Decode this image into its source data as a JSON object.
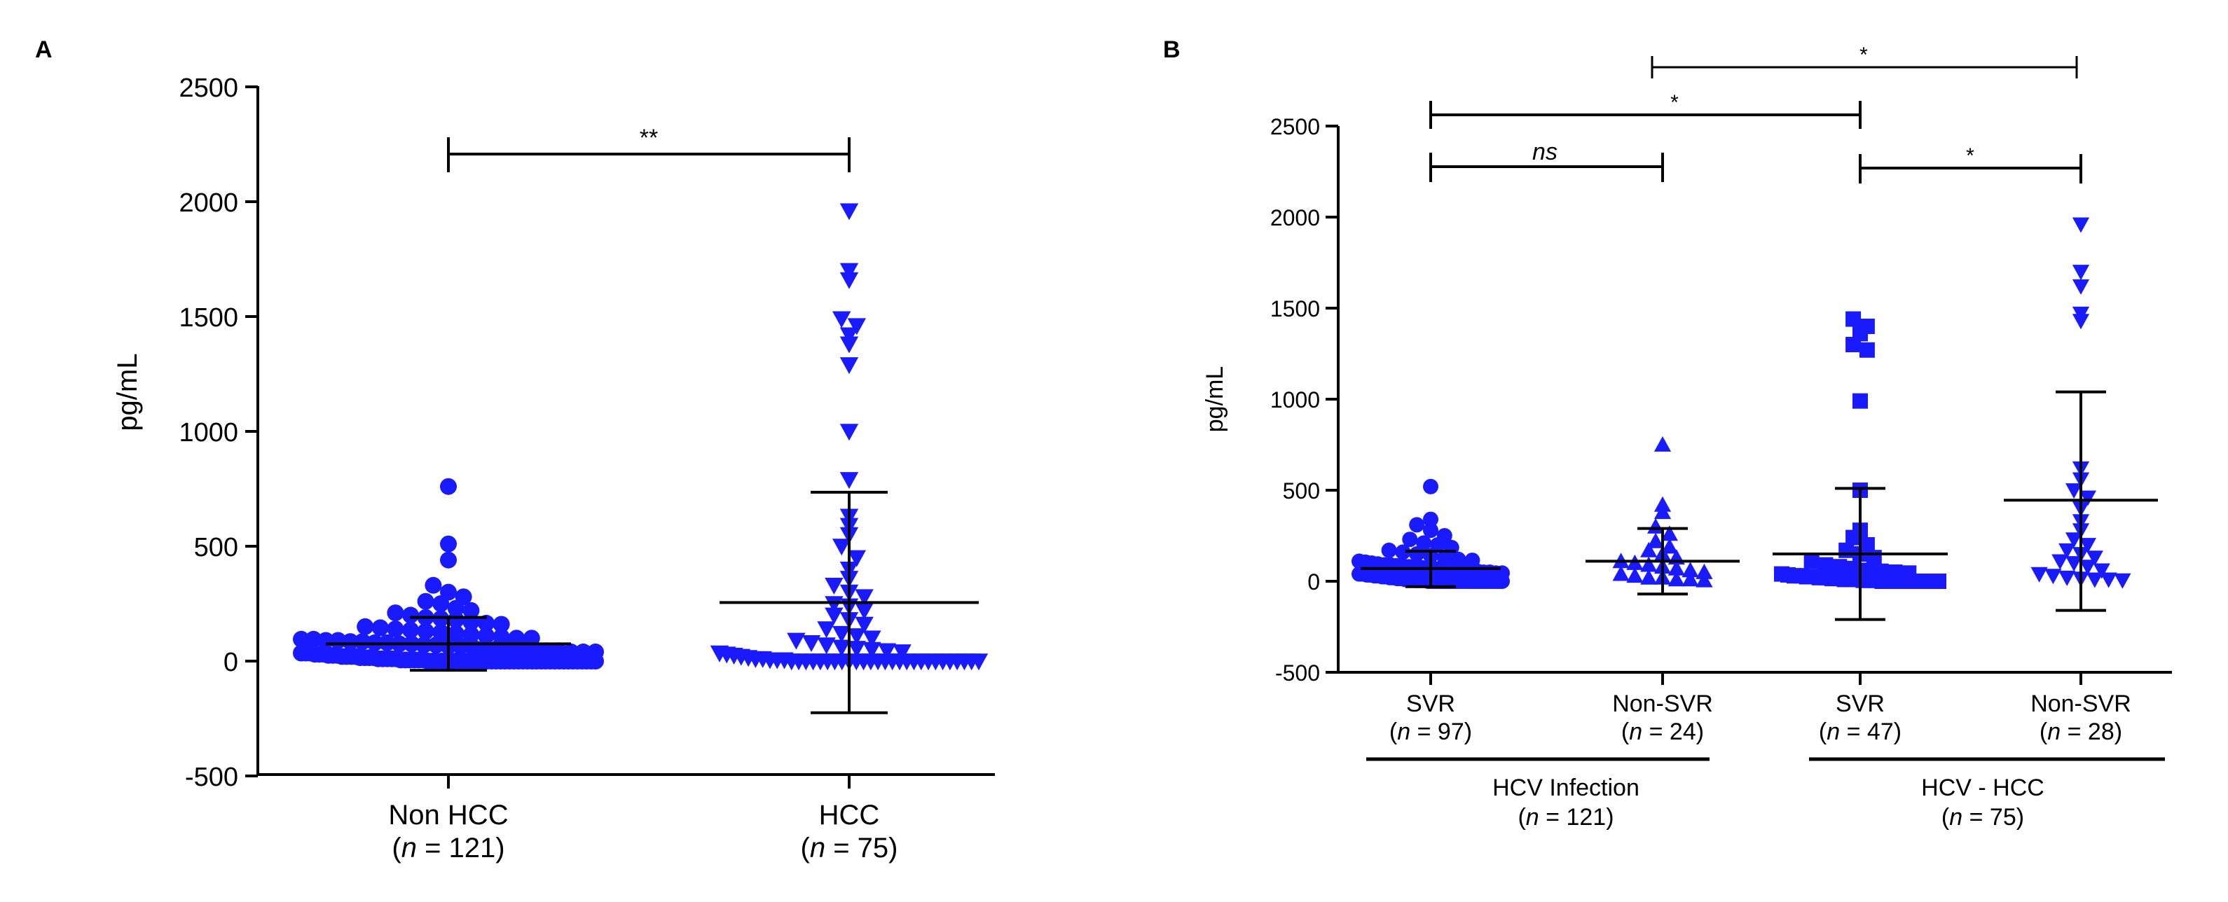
{
  "colors": {
    "marker": "#1a1aff",
    "axis": "#000000",
    "background": "#ffffff"
  },
  "chart_data": [
    {
      "type": "scatter",
      "panel_label": "A",
      "ylabel": "pg/mL",
      "ylim": [
        -500,
        2500
      ],
      "yticks": [
        -500,
        0,
        500,
        1000,
        1500,
        2000,
        2500
      ],
      "ytick_labels": [
        "-500",
        "0",
        "500",
        "1000",
        "1500",
        "2000",
        "2500"
      ],
      "groups": [
        {
          "name": "Non HCC",
          "n_prefix": "(",
          "n_italic": "n",
          "n_suffix": " = 121)",
          "marker": "circle",
          "mean": 75,
          "sd_low": -40,
          "sd_high": 190,
          "values": [
            760,
            510,
            440,
            330,
            300,
            280,
            260,
            250,
            230,
            220,
            210,
            200,
            190,
            185,
            180,
            170,
            165,
            160,
            150,
            145,
            140,
            135,
            130,
            125,
            120,
            115,
            110,
            105,
            100,
            100,
            95,
            95,
            90,
            90,
            85,
            85,
            80,
            80,
            75,
            75,
            70,
            70,
            65,
            65,
            60,
            60,
            55,
            55,
            50,
            50,
            45,
            45,
            40,
            40,
            40,
            35,
            35,
            35,
            30,
            30,
            30,
            25,
            25,
            25,
            20,
            20,
            20,
            20,
            15,
            15,
            15,
            15,
            10,
            10,
            10,
            10,
            10,
            5,
            5,
            5,
            5,
            5,
            5,
            0,
            0,
            0,
            0,
            0,
            0,
            0,
            0,
            0,
            0,
            0,
            0,
            0,
            0,
            0,
            0,
            0,
            0,
            0,
            0,
            0,
            0,
            0,
            0,
            0,
            0,
            0,
            0,
            0,
            0,
            0,
            0,
            0,
            0,
            0,
            0,
            0,
            0
          ]
        },
        {
          "name": "HCC",
          "n_prefix": "(",
          "n_italic": "n",
          "n_suffix": " = 75)",
          "marker": "triangle-down",
          "mean": 255,
          "sd_low": -225,
          "sd_high": 735,
          "values": [
            1960,
            1700,
            1660,
            1490,
            1460,
            1420,
            1380,
            1290,
            1000,
            790,
            630,
            590,
            550,
            500,
            450,
            400,
            360,
            330,
            300,
            280,
            250,
            240,
            220,
            200,
            180,
            160,
            140,
            120,
            110,
            100,
            90,
            80,
            70,
            60,
            55,
            50,
            45,
            40,
            35,
            30,
            25,
            20,
            15,
            10,
            10,
            5,
            5,
            5,
            0,
            0,
            0,
            0,
            0,
            0,
            0,
            0,
            0,
            0,
            0,
            0,
            0,
            0,
            0,
            0,
            0,
            0,
            0,
            0,
            0,
            0,
            0,
            0,
            0,
            0,
            0
          ]
        }
      ],
      "comparisons": [
        {
          "from": 0,
          "to": 1,
          "label": "**"
        }
      ]
    },
    {
      "type": "scatter",
      "panel_label": "B",
      "ylabel": "pg/mL",
      "ylim": [
        -500,
        2500
      ],
      "yticks": [
        -500,
        0,
        500,
        1000,
        1500,
        2000,
        2500
      ],
      "ytick_labels": [
        "-500",
        "0",
        "500",
        "1000",
        "1500",
        "2000",
        "2500"
      ],
      "groups": [
        {
          "name": "SVR",
          "n_prefix": "(",
          "n_italic": "n",
          "n_suffix": " = 97)",
          "marker": "circle",
          "mean": 70,
          "sd_low": -30,
          "sd_high": 165,
          "values": [
            520,
            340,
            310,
            280,
            250,
            230,
            210,
            200,
            185,
            170,
            160,
            150,
            140,
            130,
            120,
            115,
            110,
            105,
            100,
            95,
            90,
            90,
            85,
            85,
            80,
            80,
            75,
            75,
            70,
            70,
            65,
            65,
            60,
            60,
            55,
            55,
            50,
            50,
            45,
            45,
            40,
            40,
            40,
            35,
            35,
            35,
            30,
            30,
            30,
            25,
            25,
            25,
            20,
            20,
            20,
            15,
            15,
            15,
            10,
            10,
            10,
            10,
            5,
            5,
            5,
            5,
            5,
            0,
            0,
            0,
            0,
            0,
            0,
            0,
            0,
            0,
            0,
            0,
            0,
            0,
            0,
            0,
            0,
            0,
            0,
            0,
            0,
            0,
            0,
            0,
            0,
            0,
            0,
            0,
            0,
            0,
            0
          ]
        },
        {
          "name": "Non-SVR",
          "n_prefix": "(",
          "n_italic": "n",
          "n_suffix": " = 24)",
          "marker": "triangle-up",
          "mean": 110,
          "sd_low": -70,
          "sd_high": 290,
          "values": [
            750,
            420,
            380,
            300,
            260,
            220,
            190,
            170,
            150,
            130,
            110,
            100,
            90,
            80,
            70,
            60,
            50,
            40,
            30,
            20,
            20,
            10,
            10,
            5
          ]
        },
        {
          "name": "SVR",
          "n_prefix": "(",
          "n_italic": "n",
          "n_suffix": " = 47)",
          "marker": "square",
          "mean": 150,
          "sd_low": -210,
          "sd_high": 510,
          "values": [
            1440,
            1400,
            1360,
            1300,
            1270,
            990,
            500,
            280,
            240,
            200,
            170,
            150,
            130,
            110,
            90,
            80,
            70,
            60,
            55,
            50,
            45,
            40,
            35,
            30,
            30,
            25,
            25,
            20,
            20,
            15,
            15,
            10,
            10,
            10,
            5,
            5,
            5,
            0,
            0,
            0,
            0,
            0,
            0,
            0,
            0,
            0,
            0
          ]
        },
        {
          "name": "Non-SVR",
          "n_prefix": "(",
          "n_italic": "n",
          "n_suffix": " = 28)",
          "marker": "triangle-down",
          "mean": 445,
          "sd_low": -160,
          "sd_high": 1040,
          "values": [
            1960,
            1700,
            1620,
            1470,
            1430,
            620,
            560,
            500,
            460,
            400,
            330,
            280,
            230,
            200,
            170,
            150,
            130,
            110,
            100,
            80,
            60,
            40,
            30,
            20,
            15,
            10,
            10,
            5
          ]
        }
      ],
      "comparisons": [
        {
          "from": 0,
          "to": 1,
          "label": "ns",
          "italic": true
        },
        {
          "from": 0,
          "to": 2,
          "label": "*"
        },
        {
          "from": 2,
          "to": 3,
          "label": "*"
        },
        {
          "from": 1,
          "to": 3,
          "label": "*"
        }
      ],
      "category_brackets": [
        {
          "label": "HCV Infection",
          "n_prefix": "(",
          "n_italic": "n",
          "n_suffix": " = 121)"
        },
        {
          "label": "HCV - HCC",
          "n_prefix": "(",
          "n_italic": "n",
          "n_suffix": " = 75)"
        }
      ]
    }
  ]
}
